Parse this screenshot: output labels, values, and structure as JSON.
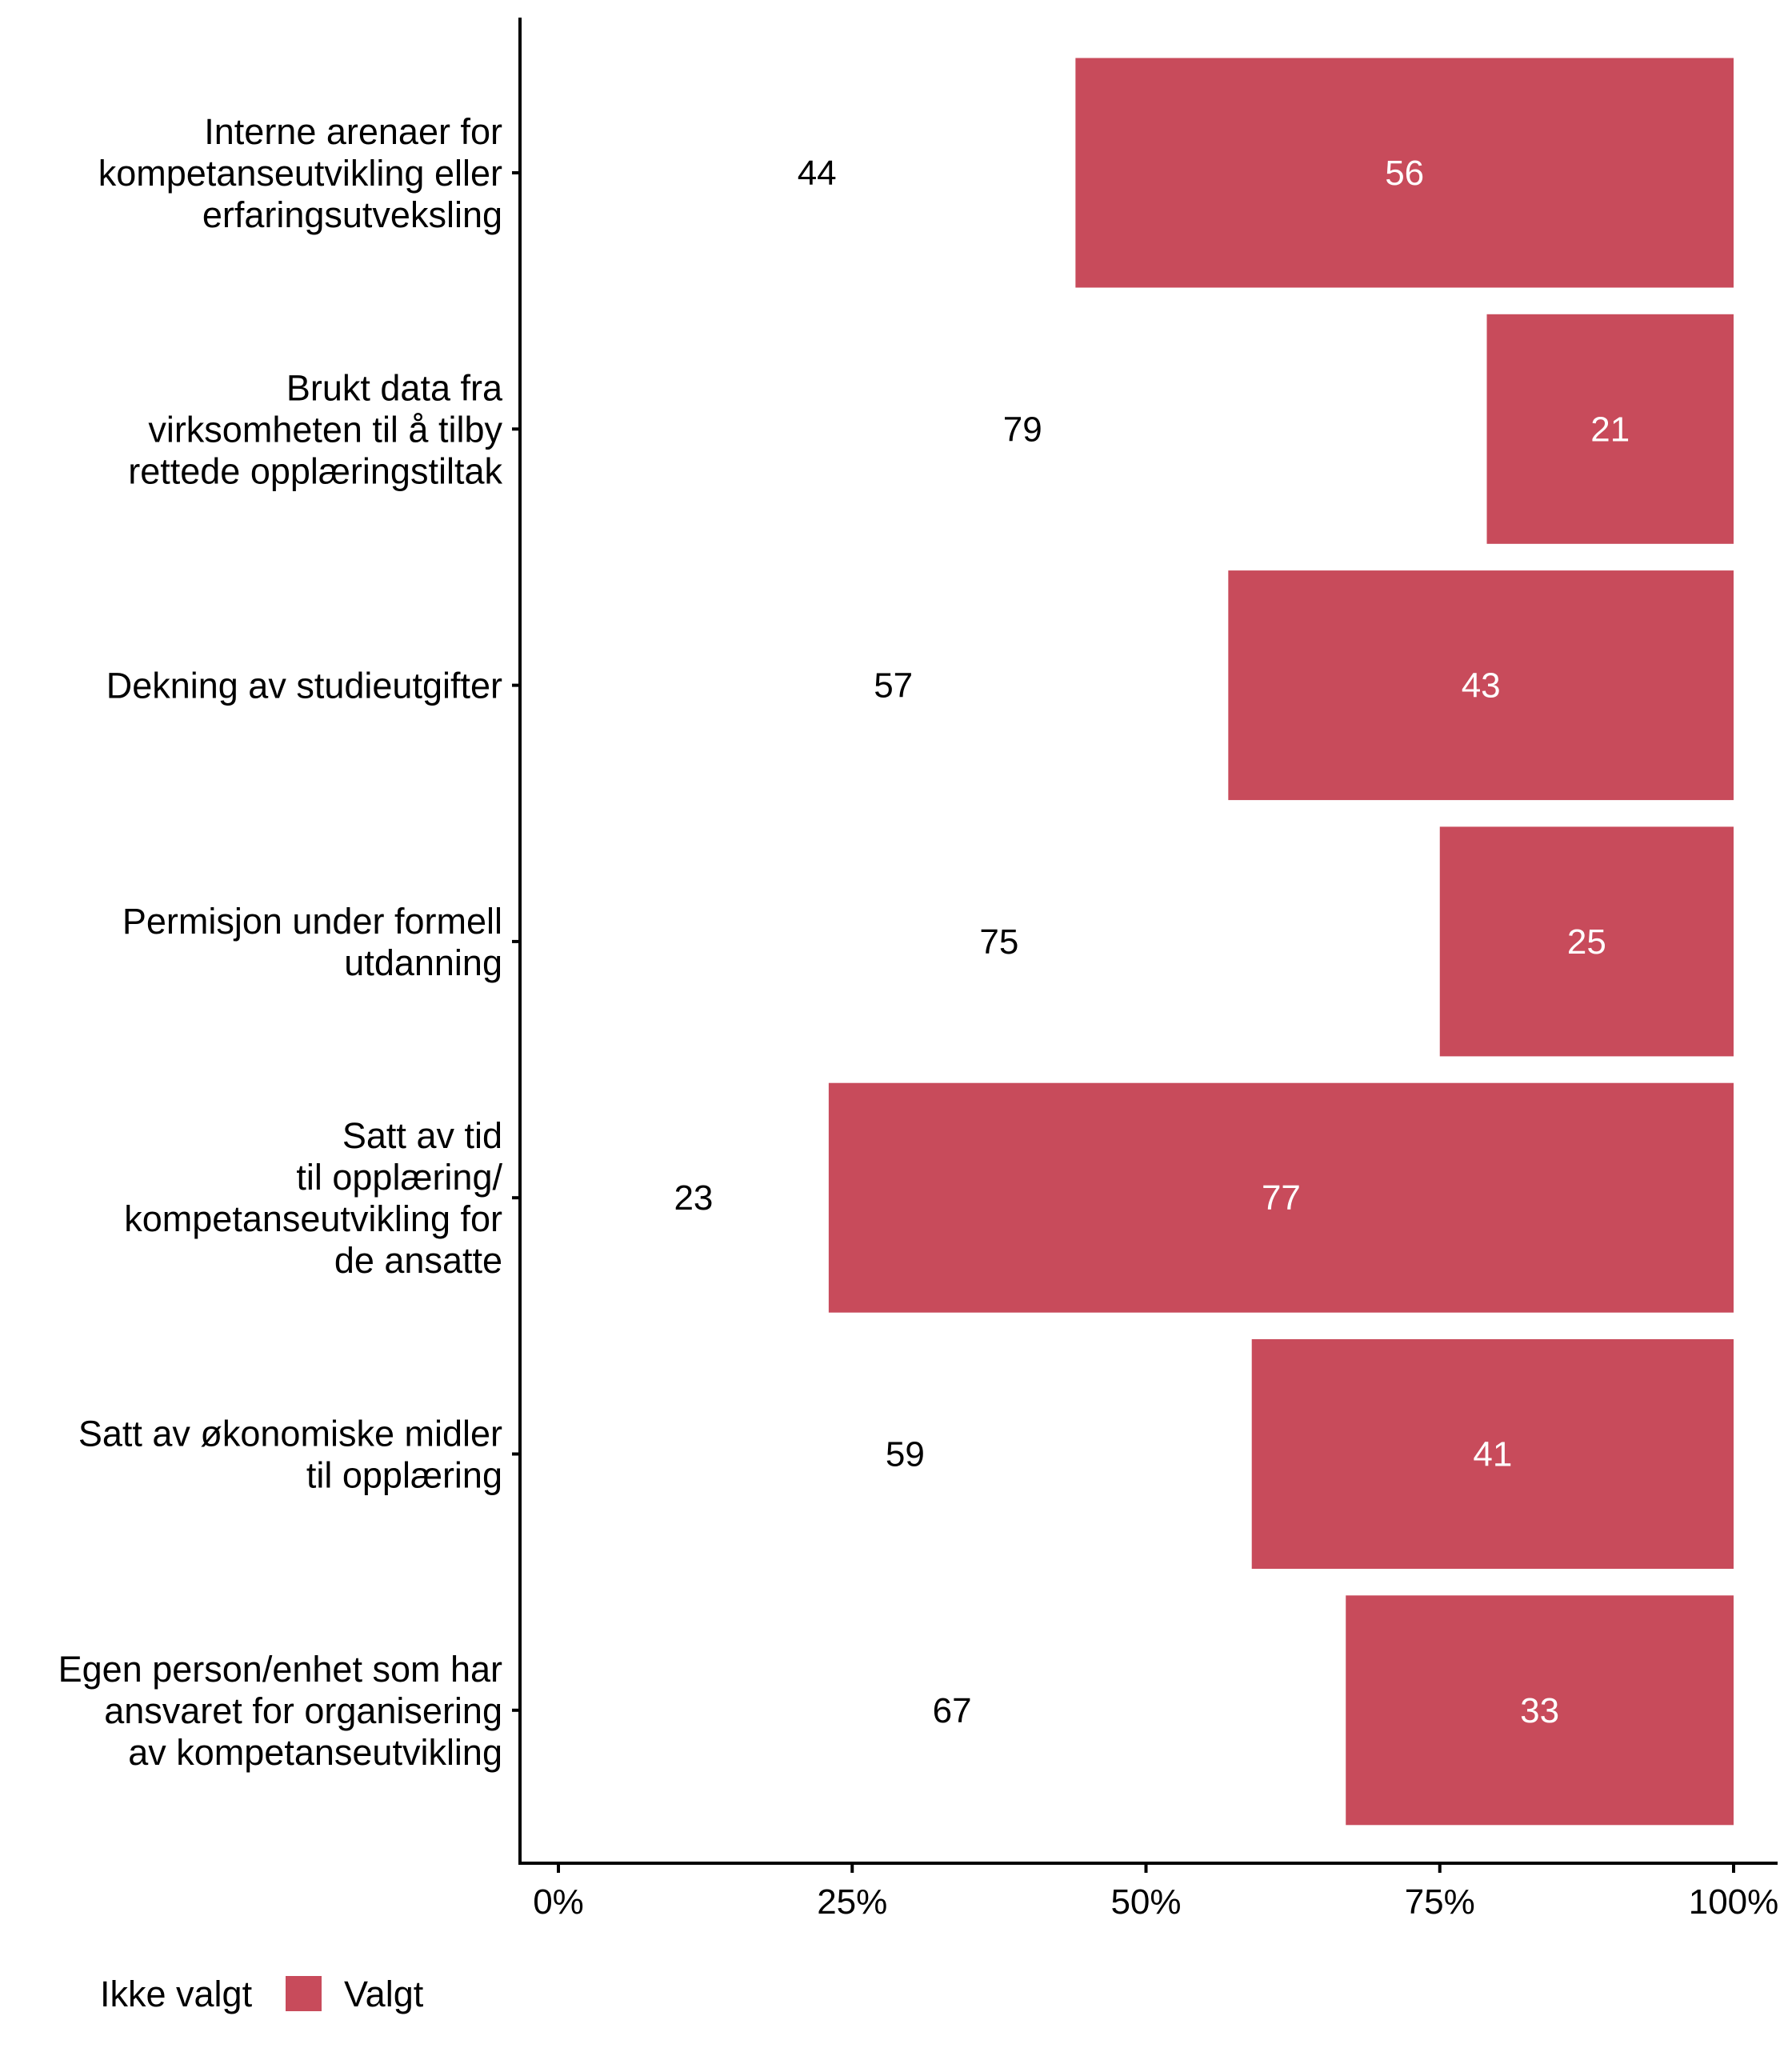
{
  "chart_data": {
    "type": "bar",
    "orientation": "horizontal",
    "stacked": true,
    "title": "",
    "xlabel": "",
    "ylabel": "",
    "xlim": [
      0,
      100
    ],
    "x_ticks": [
      "0%",
      "25%",
      "50%",
      "75%",
      "100%"
    ],
    "x_tick_values": [
      0,
      25,
      50,
      75,
      100
    ],
    "grid": false,
    "legend_position": "bottom-left",
    "categories": [
      [
        "Interne arenaer for",
        "kompetanseutvikling eller",
        "erfaringsutveksling"
      ],
      [
        "Brukt data fra",
        "virksomheten til å tilby",
        "rettede opplæringstiltak"
      ],
      [
        "Dekning av studieutgifter"
      ],
      [
        "Permisjon under formell",
        "utdanning"
      ],
      [
        "Satt av tid",
        "til opplæring/",
        "kompetanseutvikling for",
        "de ansatte"
      ],
      [
        "Satt av økonomiske midler",
        "til opplæring"
      ],
      [
        "Egen person/enhet som har",
        "ansvaret for organisering",
        "av kompetanseutvikling"
      ]
    ],
    "series": [
      {
        "name": "Ikke valgt",
        "color": "#FFFFFF",
        "label_color": "#000000",
        "values": [
          44,
          79,
          57,
          75,
          23,
          59,
          67
        ]
      },
      {
        "name": "Valgt",
        "color": "#C84B5B",
        "label_color": "#FFFFFF",
        "values": [
          56,
          21,
          43,
          25,
          77,
          41,
          33
        ]
      }
    ]
  },
  "legend": {
    "items": [
      {
        "label": "Ikke valgt",
        "color": "#FFFFFF"
      },
      {
        "label": "Valgt",
        "color": "#C84B5B"
      }
    ]
  }
}
